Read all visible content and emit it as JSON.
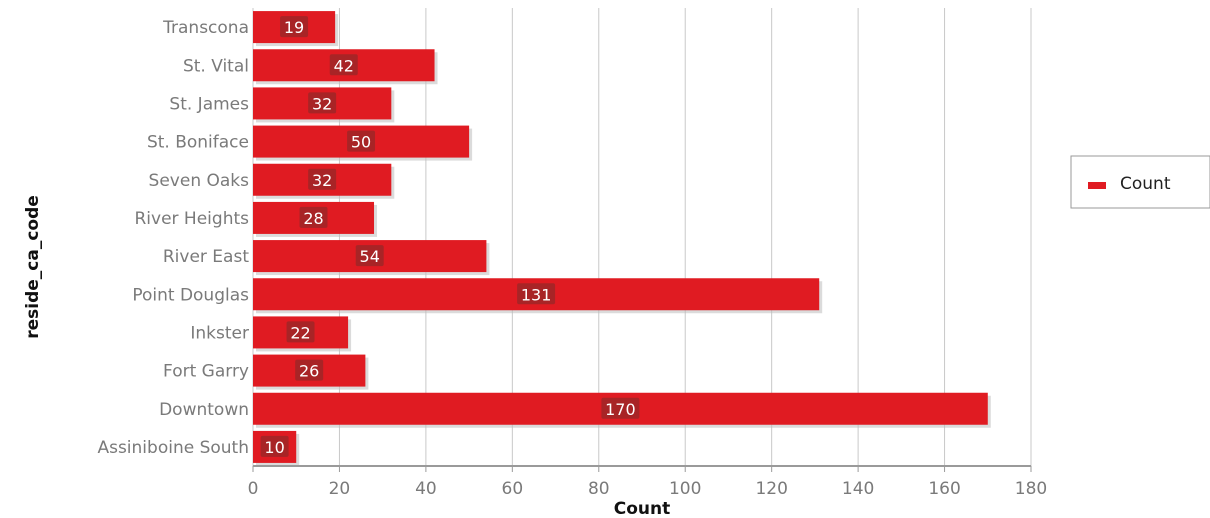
{
  "chart_data": {
    "type": "bar",
    "orientation": "horizontal",
    "categories": [
      "Transcona",
      "St. Vital",
      "St. James",
      "St. Boniface",
      "Seven Oaks",
      "River Heights",
      "River East",
      "Point Douglas",
      "Inkster",
      "Fort Garry",
      "Downtown",
      "Assiniboine South"
    ],
    "series": [
      {
        "name": "Count",
        "values": [
          19,
          42,
          32,
          50,
          32,
          28,
          54,
          131,
          22,
          26,
          170,
          10
        ],
        "color": "#e01b22"
      }
    ],
    "xlabel": "Count",
    "ylabel": "reside_ca_code",
    "xlim": [
      0,
      180
    ],
    "xticks": [
      0,
      20,
      40,
      60,
      80,
      100,
      120,
      140,
      160,
      180
    ],
    "grid": "vertical",
    "legend_position": "right",
    "data_labels": true
  }
}
